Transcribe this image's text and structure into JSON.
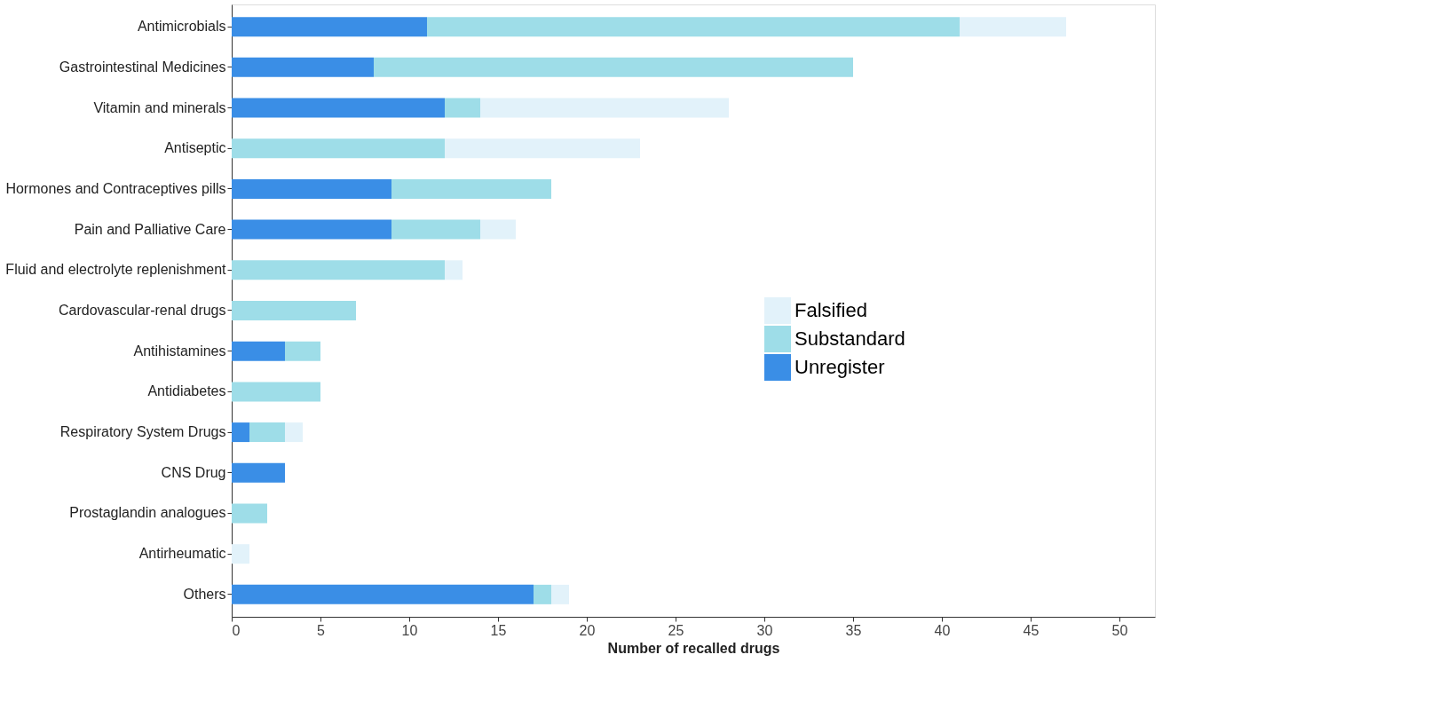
{
  "chart_data": {
    "type": "bar",
    "orientation": "horizontal",
    "stacked": true,
    "xlabel": "Number of recalled drugs",
    "categories": [
      "Antimicrobials",
      "Gastrointestinal Medicines",
      "Vitamin and minerals",
      "Antiseptic",
      "Hormones and Contraceptives pills",
      "Pain and Palliative Care",
      "Fluid and electrolyte replenishment",
      "Cardovascular-renal drugs",
      "Antihistamines",
      "Antidiabetes",
      "Respiratory System Drugs",
      "CNS Drug",
      "Prostaglandin analogues",
      "Antirheumatic",
      "Others"
    ],
    "series": [
      {
        "name": "Unregister",
        "color": "#3a8ee6",
        "values": [
          11,
          8,
          12,
          0,
          9,
          9,
          0,
          0,
          3,
          0,
          1,
          3,
          0,
          0,
          17
        ]
      },
      {
        "name": "Substandard",
        "color": "#9edde8",
        "values": [
          30,
          27,
          2,
          12,
          9,
          5,
          12,
          7,
          2,
          5,
          2,
          0,
          2,
          0,
          1
        ]
      },
      {
        "name": "Falsified",
        "color": "#e2f2fa",
        "values": [
          6,
          0,
          14,
          11,
          0,
          2,
          1,
          0,
          0,
          0,
          1,
          0,
          0,
          1,
          1
        ]
      }
    ],
    "xlim": [
      0,
      52
    ],
    "xticks": [
      0,
      5,
      10,
      15,
      20,
      25,
      30,
      35,
      40,
      45,
      50
    ],
    "grid": false,
    "legend": "right"
  }
}
